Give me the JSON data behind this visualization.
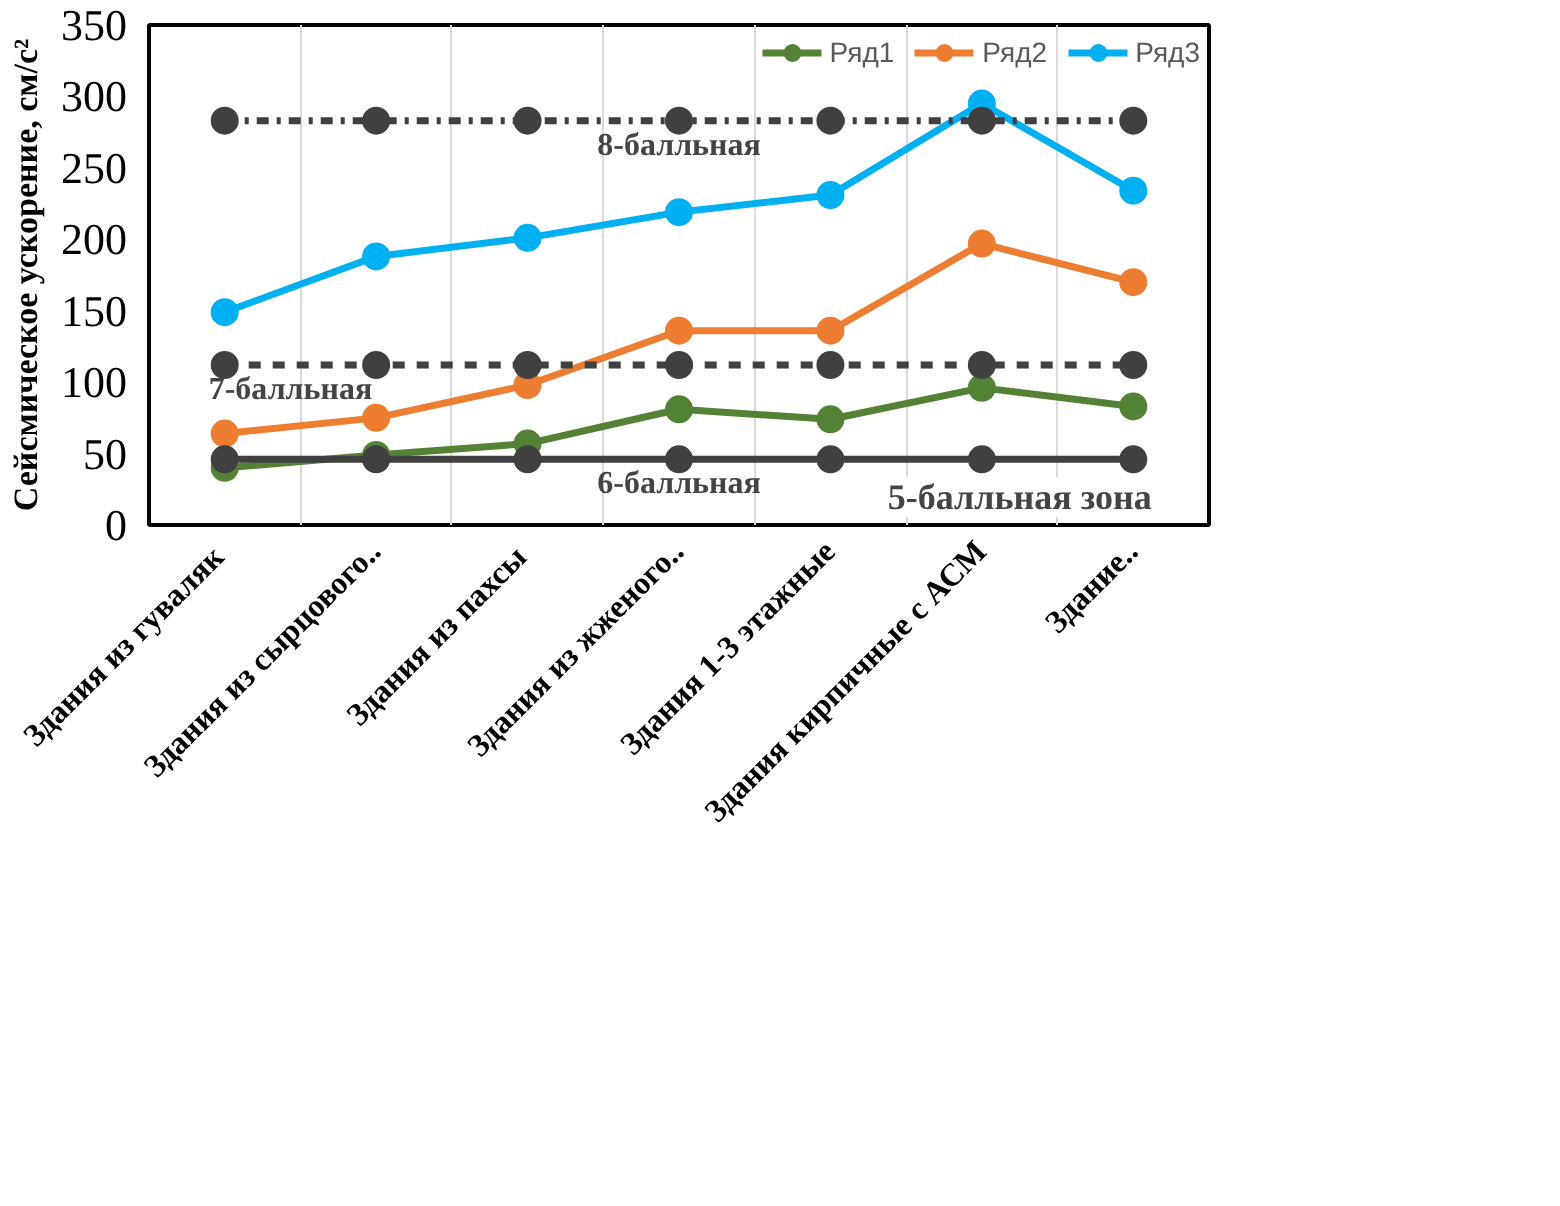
{
  "chart_data": {
    "type": "line",
    "ylabel": "Сейсмическое ускорение, см/с²",
    "categories": [
      "Здания  из гуваляк",
      "Здания из сырцового..",
      "Здания  из пахсы",
      "Здания из жженого..",
      "Здания 1-3 этажные",
      "Здания кирпичные с АСМ",
      "Здание.."
    ],
    "series": [
      {
        "name": "Ряд1",
        "color": "#548235",
        "values": [
          40,
          49,
          57,
          81,
          74,
          96,
          83
        ]
      },
      {
        "name": "Ряд2",
        "color": "#ed7d31",
        "values": [
          64,
          75,
          98,
          136,
          136,
          197,
          170
        ]
      },
      {
        "name": "Ряд3",
        "color": "#00b0f0",
        "values": [
          149,
          188,
          201,
          219,
          231,
          295,
          234
        ]
      },
      {
        "color": "#404040",
        "line_style": "solid",
        "values": [
          46,
          46,
          46,
          46,
          46,
          46,
          46
        ]
      },
      {
        "color": "#404040",
        "line_style": "dashed",
        "values": [
          112,
          112,
          112,
          112,
          112,
          112,
          112
        ]
      },
      {
        "color": "#404040",
        "line_style": "dashdot",
        "values": [
          283,
          283,
          283,
          283,
          283,
          283,
          283
        ]
      }
    ],
    "annotations": [
      {
        "text": "6-балльная",
        "x": "Здания из жженого..",
        "y": 46
      },
      {
        "text": "7-балльная",
        "x": "Здания  из гуваляк",
        "y": 112
      },
      {
        "text": "8-балльная",
        "x": "Здания из жженого..",
        "y": 283
      },
      "5-балльная зона"
    ],
    "ylim": [
      0,
      350
    ],
    "yticks": [
      0,
      50,
      100,
      150,
      200,
      250,
      300,
      350
    ],
    "grid": "x",
    "legend": "top right",
    "marker": "circle",
    "line_style": "solid"
  }
}
